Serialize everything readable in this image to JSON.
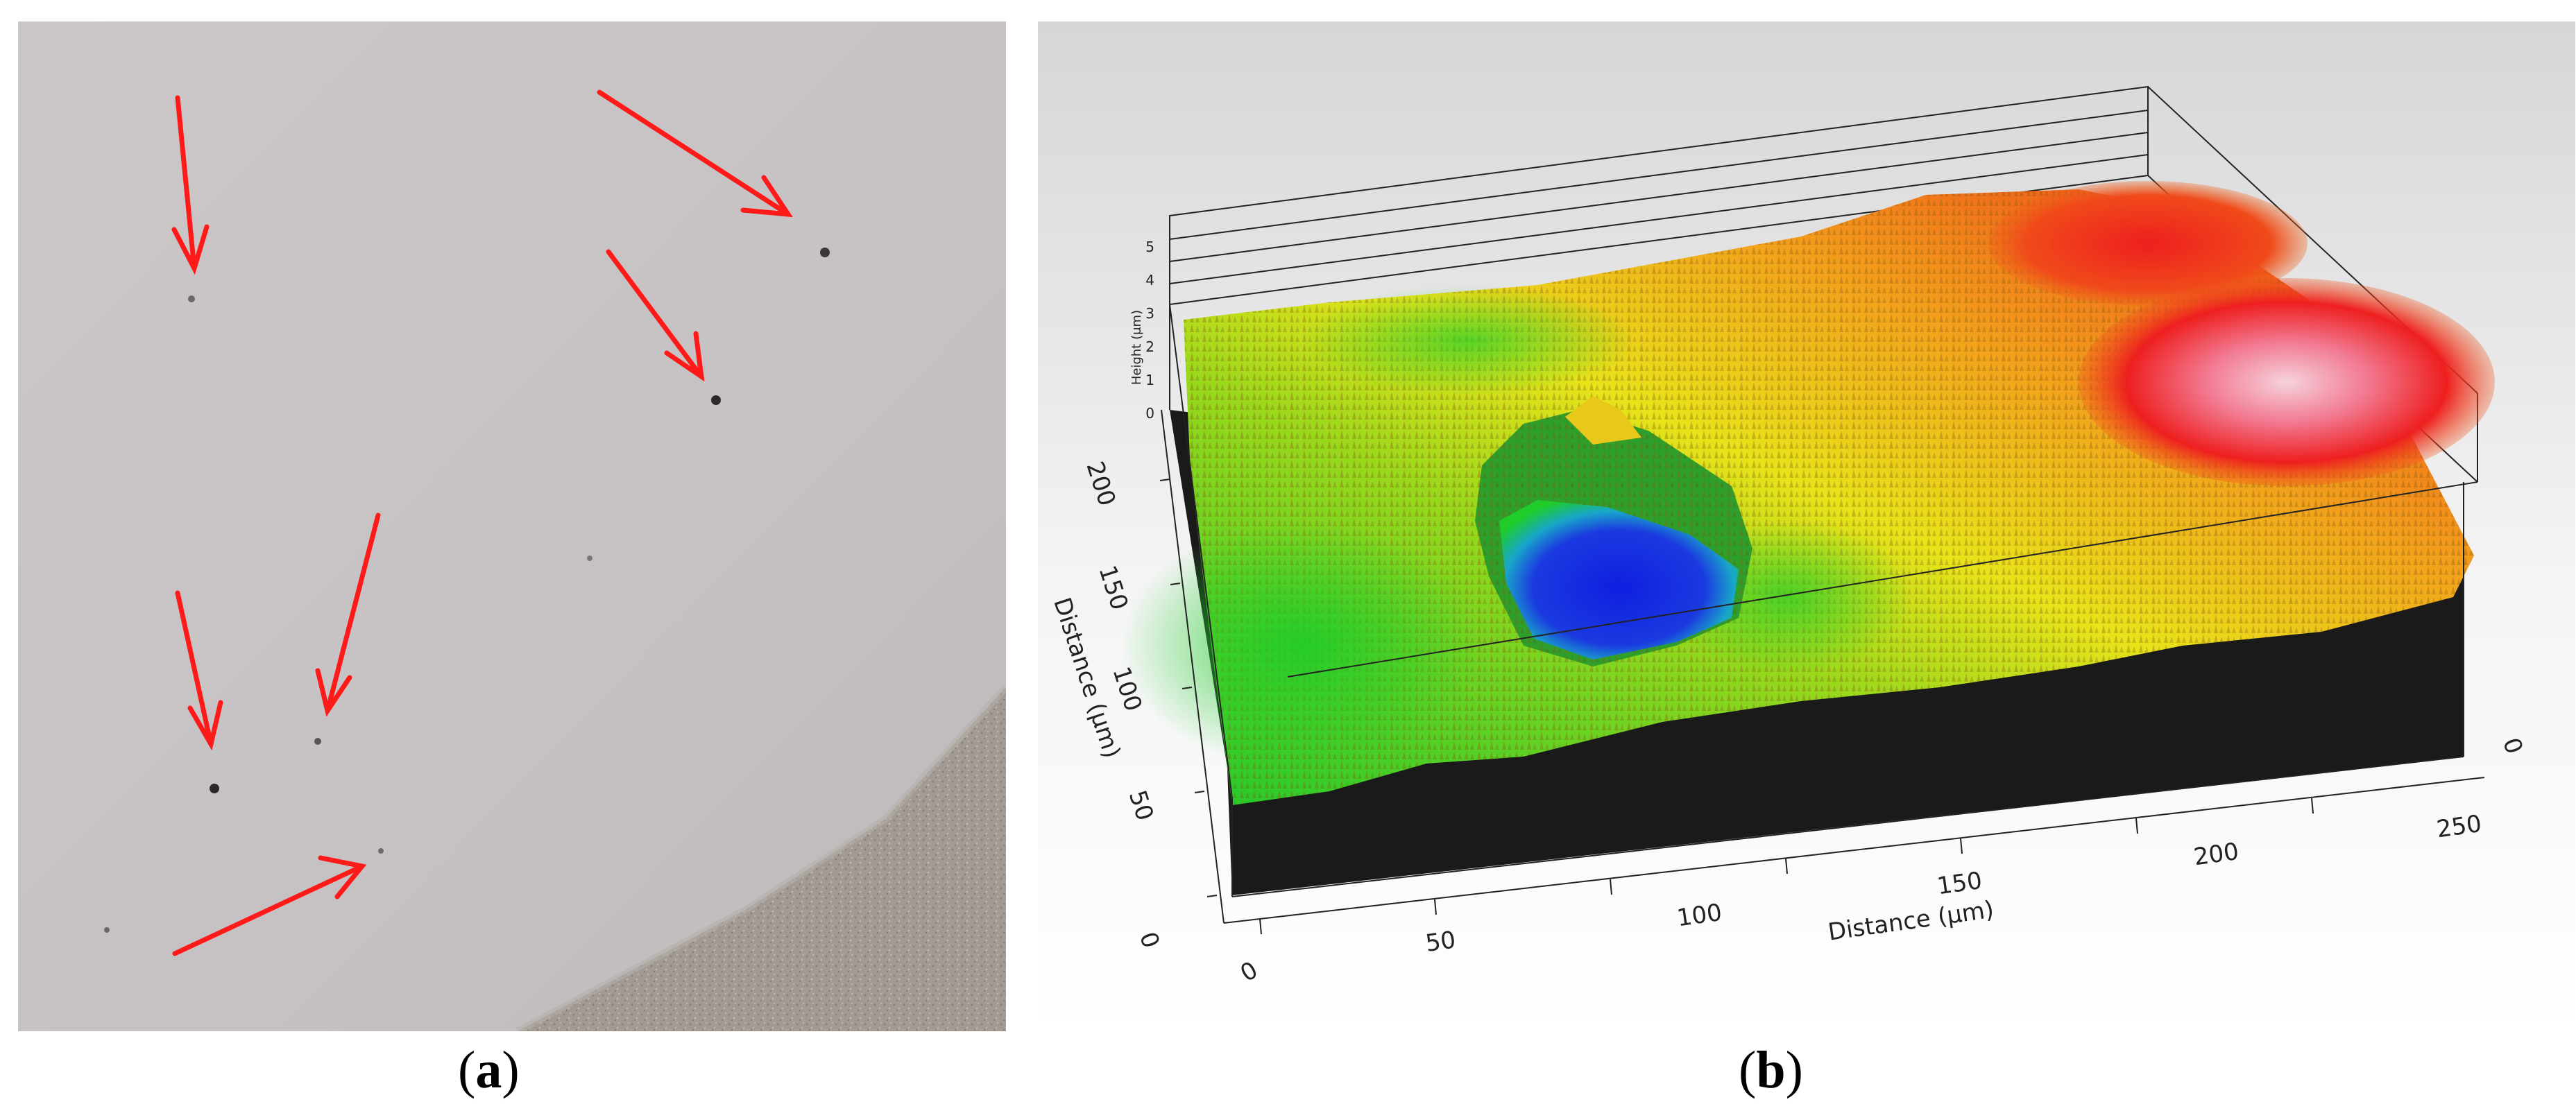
{
  "panel_a": {
    "label_letter": "a",
    "arrow_color": "#ff1a1a",
    "background_color": "#c7c3c4",
    "sand_color": "#a69e96",
    "arrow_count": 6
  },
  "panel_b": {
    "label_letter": "b",
    "z_axis_label": "Height (μm)",
    "z_ticks": [
      "0",
      "1",
      "2",
      "3",
      "4",
      "5"
    ],
    "y_axis_label": "Distance (μm)",
    "y_ticks": [
      "0",
      "50",
      "100",
      "150",
      "200"
    ],
    "x_axis_label": "Distance (μm)",
    "x_ticks": [
      "0",
      "50",
      "100",
      "150",
      "200",
      "250"
    ],
    "right_ticks": [
      "0"
    ],
    "colors": {
      "low": "#0a1fd6",
      "mid_low": "#1fcc2a",
      "mid": "#e6e61a",
      "mid_high": "#f08a1a",
      "high": "#ee1f1f",
      "peak": "#f2b8c8",
      "base": "#1a1a1a",
      "background_top": "#d9d9d9",
      "background_bottom": "#ffffff"
    }
  },
  "captions": {
    "a_open": "(",
    "a_letter": "a",
    "a_close": ")",
    "b_open": "(",
    "b_letter": "b",
    "b_close": ")"
  }
}
